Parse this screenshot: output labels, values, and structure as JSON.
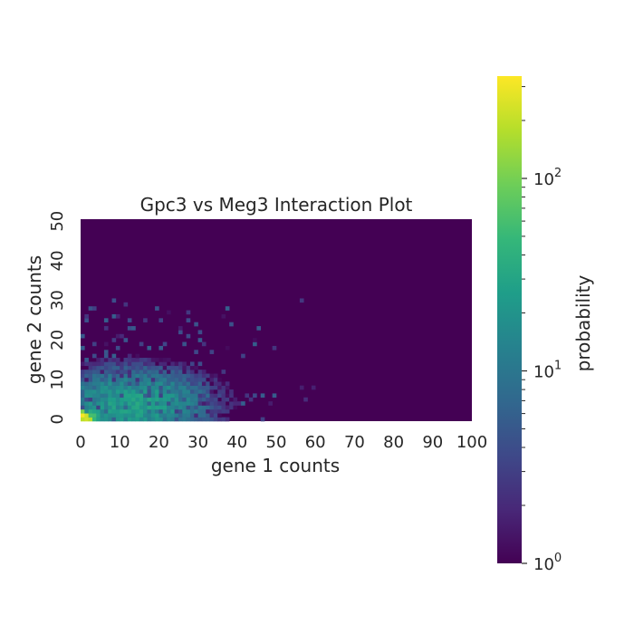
{
  "chart_data": {
    "type": "heatmap",
    "title": "Gpc3 vs Meg3 Interaction Plot",
    "xlabel": "gene 1 counts",
    "ylabel": "gene 2 counts",
    "xlim": [
      0,
      100
    ],
    "ylim": [
      0,
      51
    ],
    "x_ticks": [
      "0",
      "10",
      "20",
      "30",
      "40",
      "50",
      "60",
      "70",
      "80",
      "90",
      "100"
    ],
    "y_ticks": [
      "0",
      "10",
      "20",
      "30",
      "40",
      "50"
    ],
    "grid": false,
    "colormap": "viridis",
    "colorbar": {
      "label": "probability",
      "scale": "log",
      "range": [
        1,
        340
      ],
      "ticks": [
        {
          "base": "10",
          "exp": "0",
          "value": 1
        },
        {
          "base": "10",
          "exp": "1",
          "value": 10
        },
        {
          "base": "10",
          "exp": "2",
          "value": 100
        }
      ]
    },
    "background_value": 1,
    "density_model": {
      "peak": {
        "x": 0,
        "y": 0,
        "value": 340
      },
      "core_center": {
        "x": 13,
        "y": 4
      },
      "core_value": 25,
      "spread_x": 11,
      "spread_y": 5,
      "sparse_extent": {
        "x": [
          0,
          60
        ],
        "y": [
          0,
          31
        ]
      }
    }
  },
  "colors": {
    "viridis": [
      "#440154",
      "#482878",
      "#3e4989",
      "#31688e",
      "#26828e",
      "#1f9e89",
      "#35b779",
      "#6ece58",
      "#b5de2b",
      "#fde725"
    ],
    "background": "#ffffff",
    "text": "#262626"
  }
}
